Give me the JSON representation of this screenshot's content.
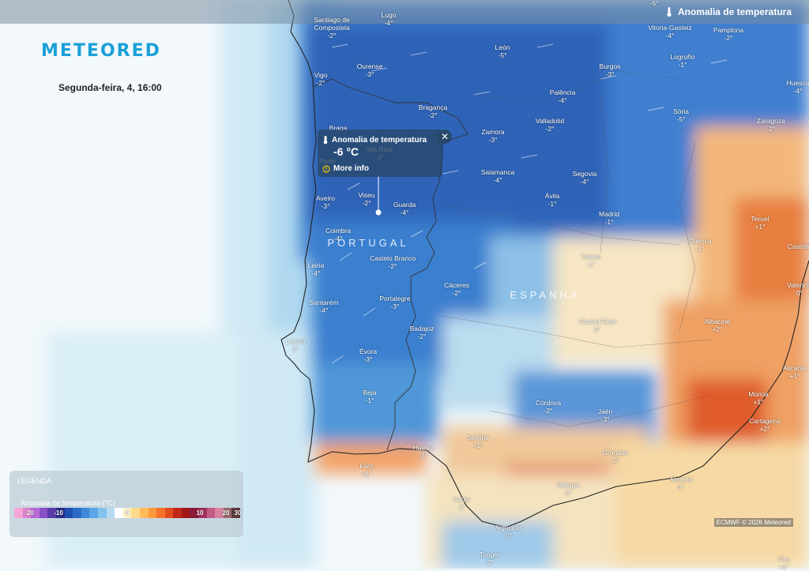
{
  "header": {
    "title": "Anomalia de temperatura"
  },
  "brand": {
    "logo": "METEORED"
  },
  "date": "Segunda-feira, 4, 16:00",
  "popup": {
    "title": "Anomalia de temperatura",
    "value": "-6 °C",
    "more": "More info",
    "close": "✕"
  },
  "countries": [
    {
      "name": "PORTUGAL"
    },
    {
      "name": "ESPANHA"
    }
  ],
  "cities": [
    {
      "name": "Santiago de\nCompostela",
      "value": "-2°",
      "dark": false
    },
    {
      "name": "Lugo",
      "value": "-4°",
      "dark": false
    },
    {
      "name": "Ourense",
      "value": "-3°",
      "dark": false
    },
    {
      "name": "Vigo",
      "value": "-2°",
      "dark": false
    },
    {
      "name": "León",
      "value": "-5°",
      "dark": false
    },
    {
      "name": "Vitoria-Gasteiz",
      "value": "-4°",
      "dark": false
    },
    {
      "name": "Pamplona",
      "value": "-2°",
      "dark": false
    },
    {
      "name": "Logroño",
      "value": "-1°",
      "dark": false
    },
    {
      "name": "Burgos",
      "value": "-3°",
      "dark": false
    },
    {
      "name": "Huesca",
      "value": "-4°",
      "dark": false
    },
    {
      "name": "Bragança",
      "value": "-2°",
      "dark": false
    },
    {
      "name": "Palência",
      "value": "-4°",
      "dark": false
    },
    {
      "name": "Sória",
      "value": "-5°",
      "dark": false
    },
    {
      "name": "Zaragoza",
      "value": "-2°",
      "dark": false
    },
    {
      "name": "Braga",
      "value": "",
      "dark": false
    },
    {
      "name": "Vila Real",
      "value": "-3°",
      "dark": false
    },
    {
      "name": "Porto",
      "value": "",
      "dark": false
    },
    {
      "name": "Zamora",
      "value": "-3°",
      "dark": false
    },
    {
      "name": "Valladolid",
      "value": "-2°",
      "dark": false
    },
    {
      "name": "Salamanca",
      "value": "-4°",
      "dark": false
    },
    {
      "name": "Segovia",
      "value": "-4°",
      "dark": false
    },
    {
      "name": "Aveiro",
      "value": "-3°",
      "dark": false
    },
    {
      "name": "Viseu",
      "value": "-2°",
      "dark": false
    },
    {
      "name": "Guarda",
      "value": "-4°",
      "dark": false
    },
    {
      "name": "Ávila",
      "value": "-1°",
      "dark": false
    },
    {
      "name": "Madrid",
      "value": "-1°",
      "dark": false
    },
    {
      "name": "Teruel",
      "value": "+1°",
      "dark": false
    },
    {
      "name": "Coimbra",
      "value": "-4°",
      "dark": false
    },
    {
      "name": "Cuenca",
      "value": "-1°",
      "dark": false
    },
    {
      "name": "Castelló",
      "value": "",
      "dark": false
    },
    {
      "name": "Leiria",
      "value": "-4°",
      "dark": false
    },
    {
      "name": "Castelo Branco",
      "value": "-2°",
      "dark": false
    },
    {
      "name": "Toledo",
      "value": "-1°",
      "dark": false
    },
    {
      "name": "Cáceres",
      "value": "-2°",
      "dark": false
    },
    {
      "name": "València",
      "value": "0°",
      "dark": false
    },
    {
      "name": "Santarém",
      "value": "-4°",
      "dark": false
    },
    {
      "name": "Portalegre",
      "value": "-3°",
      "dark": false
    },
    {
      "name": "Ciudad Real",
      "value": "0°",
      "dark": false
    },
    {
      "name": "Albacete",
      "value": "+2°",
      "dark": false
    },
    {
      "name": "Lisboa",
      "value": "0°",
      "dark": false
    },
    {
      "name": "Badajoz",
      "value": "-2°",
      "dark": false
    },
    {
      "name": "Évora",
      "value": "-3°",
      "dark": false
    },
    {
      "name": "Alicante",
      "value": "+1°",
      "dark": false
    },
    {
      "name": "Beja",
      "value": "-1°",
      "dark": false
    },
    {
      "name": "Córdova",
      "value": "-2°",
      "dark": false
    },
    {
      "name": "Jaén",
      "value": "-3°",
      "dark": false
    },
    {
      "name": "Múrcia",
      "value": "+1°",
      "dark": false
    },
    {
      "name": "Cartagena",
      "value": "+2°",
      "dark": false
    },
    {
      "name": "Sevilha",
      "value": "+1°",
      "dark": false
    },
    {
      "name": "Huelva",
      "value": "-1°",
      "dark": false
    },
    {
      "name": "Faro",
      "value": "+1°",
      "dark": false
    },
    {
      "name": "Granada",
      "value": "-2°",
      "dark": false
    },
    {
      "name": "Málaga",
      "value": "-3°",
      "dark": false
    },
    {
      "name": "Almería",
      "value": "0°",
      "dark": false
    },
    {
      "name": "Cádis",
      "value": "-2°",
      "dark": false
    },
    {
      "name": "Algeciras",
      "value": "0°",
      "dark": false
    },
    {
      "name": "Tanger",
      "value": "-2°",
      "dark": false
    },
    {
      "name": "Ora",
      "value": "+1°",
      "dark": false
    },
    {
      "name": "",
      "value": "-5°",
      "dark": false
    }
  ],
  "legend": {
    "title": "LEGENDA",
    "subtitle": "Anomalia de temperatura (°C)",
    "ticks": [
      "-20",
      "-10",
      "0",
      "10",
      "20",
      "30"
    ],
    "colors": [
      "#f4a6d6",
      "#e07fcf",
      "#b86ad8",
      "#8a4fc9",
      "#5a3aa8",
      "#2a2f8a",
      "#1e4fb0",
      "#2c6cc8",
      "#3f88d8",
      "#5aa6e6",
      "#86c2ee",
      "#b6dcf3",
      "#ffffff",
      "#fff0c8",
      "#ffd98a",
      "#ffbb5a",
      "#ff9a3c",
      "#f5722a",
      "#e04c1e",
      "#c0281a",
      "#a01818",
      "#8a1a3a",
      "#a3305e",
      "#c45a86",
      "#d8829f",
      "#9a6a6a",
      "#5a3a3a"
    ]
  },
  "credit": "ECMWF © 2026 Meteored"
}
